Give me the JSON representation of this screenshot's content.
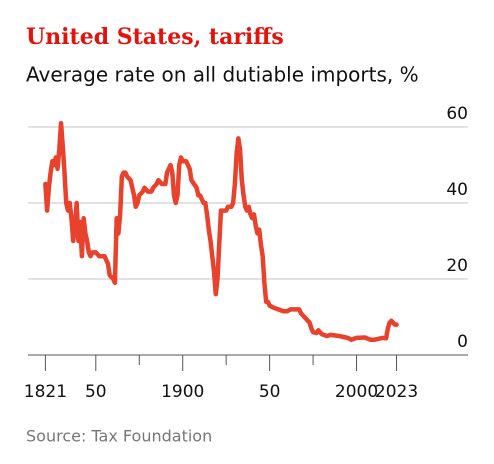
{
  "chart_data": {
    "type": "line",
    "title": "United States, tariffs",
    "subtitle": "Average rate on all dutiable imports, %",
    "source": "Source: Tax Foundation",
    "x": [
      1821,
      1822,
      1823,
      1824,
      1825,
      1826,
      1827,
      1828,
      1829,
      1830,
      1831,
      1832,
      1833,
      1834,
      1835,
      1836,
      1837,
      1838,
      1839,
      1840,
      1841,
      1842,
      1843,
      1844,
      1845,
      1846,
      1847,
      1848,
      1850,
      1852,
      1855,
      1857,
      1858,
      1860,
      1861,
      1862,
      1863,
      1864,
      1865,
      1866,
      1867,
      1868,
      1870,
      1872,
      1873,
      1874,
      1875,
      1877,
      1878,
      1880,
      1882,
      1883,
      1885,
      1886,
      1888,
      1890,
      1891,
      1893,
      1894,
      1895,
      1896,
      1897,
      1898,
      1899,
      1900,
      1902,
      1904,
      1905,
      1908,
      1909,
      1910,
      1912,
      1913,
      1914,
      1915,
      1916,
      1917,
      1918,
      1919,
      1920,
      1921,
      1922,
      1923,
      1925,
      1926,
      1928,
      1929,
      1930,
      1931,
      1932,
      1933,
      1934,
      1935,
      1936,
      1937,
      1938,
      1939,
      1940,
      1941,
      1942,
      1943,
      1944,
      1945,
      1946,
      1947,
      1948,
      1949,
      1950,
      1952,
      1955,
      1958,
      1960,
      1962,
      1965,
      1967,
      1968,
      1970,
      1972,
      1973,
      1974,
      1975,
      1977,
      1978,
      1980,
      1983,
      1985,
      1990,
      1995,
      1997,
      2000,
      2005,
      2008,
      2010,
      2015,
      2017,
      2018,
      2019,
      2020,
      2021,
      2022,
      2023
    ],
    "series": [
      {
        "color": "#e8412c",
        "values": [
          45,
          38,
          44,
          48,
          51,
          50,
          52,
          49,
          54,
          61,
          55,
          48,
          40,
          38,
          40,
          36,
          30,
          34,
          40,
          30,
          35,
          26,
          36,
          32,
          30,
          27,
          26,
          27,
          27,
          26,
          26,
          24,
          21,
          20,
          19,
          36,
          32,
          37,
          47,
          48,
          48,
          47,
          46,
          42,
          39,
          40,
          42,
          43,
          44,
          43,
          43,
          44,
          45,
          46,
          45,
          45,
          48,
          50,
          48,
          42,
          40,
          42,
          50,
          52,
          51,
          51,
          49,
          46,
          44,
          42,
          42,
          40,
          40,
          37,
          33,
          30,
          26,
          22,
          16,
          20,
          29,
          38,
          38,
          38,
          39,
          39,
          40,
          45,
          53,
          57,
          54,
          46,
          42,
          39,
          38,
          39,
          37,
          36,
          37,
          34,
          32,
          33,
          29,
          26,
          19,
          14,
          14,
          13,
          12.5,
          12,
          11.5,
          11.5,
          12,
          12,
          12,
          11,
          10,
          9,
          8.5,
          7,
          6,
          5.8,
          6.5,
          5.5,
          5,
          5.3,
          5,
          4.5,
          4,
          4.5,
          4.6,
          4,
          4,
          4.5,
          4.4,
          7,
          8.5,
          9,
          8.5,
          8,
          8
        ]
      }
    ],
    "xlim": [
      1811,
      2048
    ],
    "xticks": [
      1821,
      {
        "value": 1850,
        "label": "50"
      },
      1900,
      {
        "value": 1950,
        "label": "50"
      },
      2000,
      2023
    ],
    "xminor_ticks": [
      1875,
      1925,
      1975
    ],
    "ylim": [
      0,
      60
    ],
    "yticks": [
      0,
      20,
      40,
      60
    ],
    "grid": true
  }
}
